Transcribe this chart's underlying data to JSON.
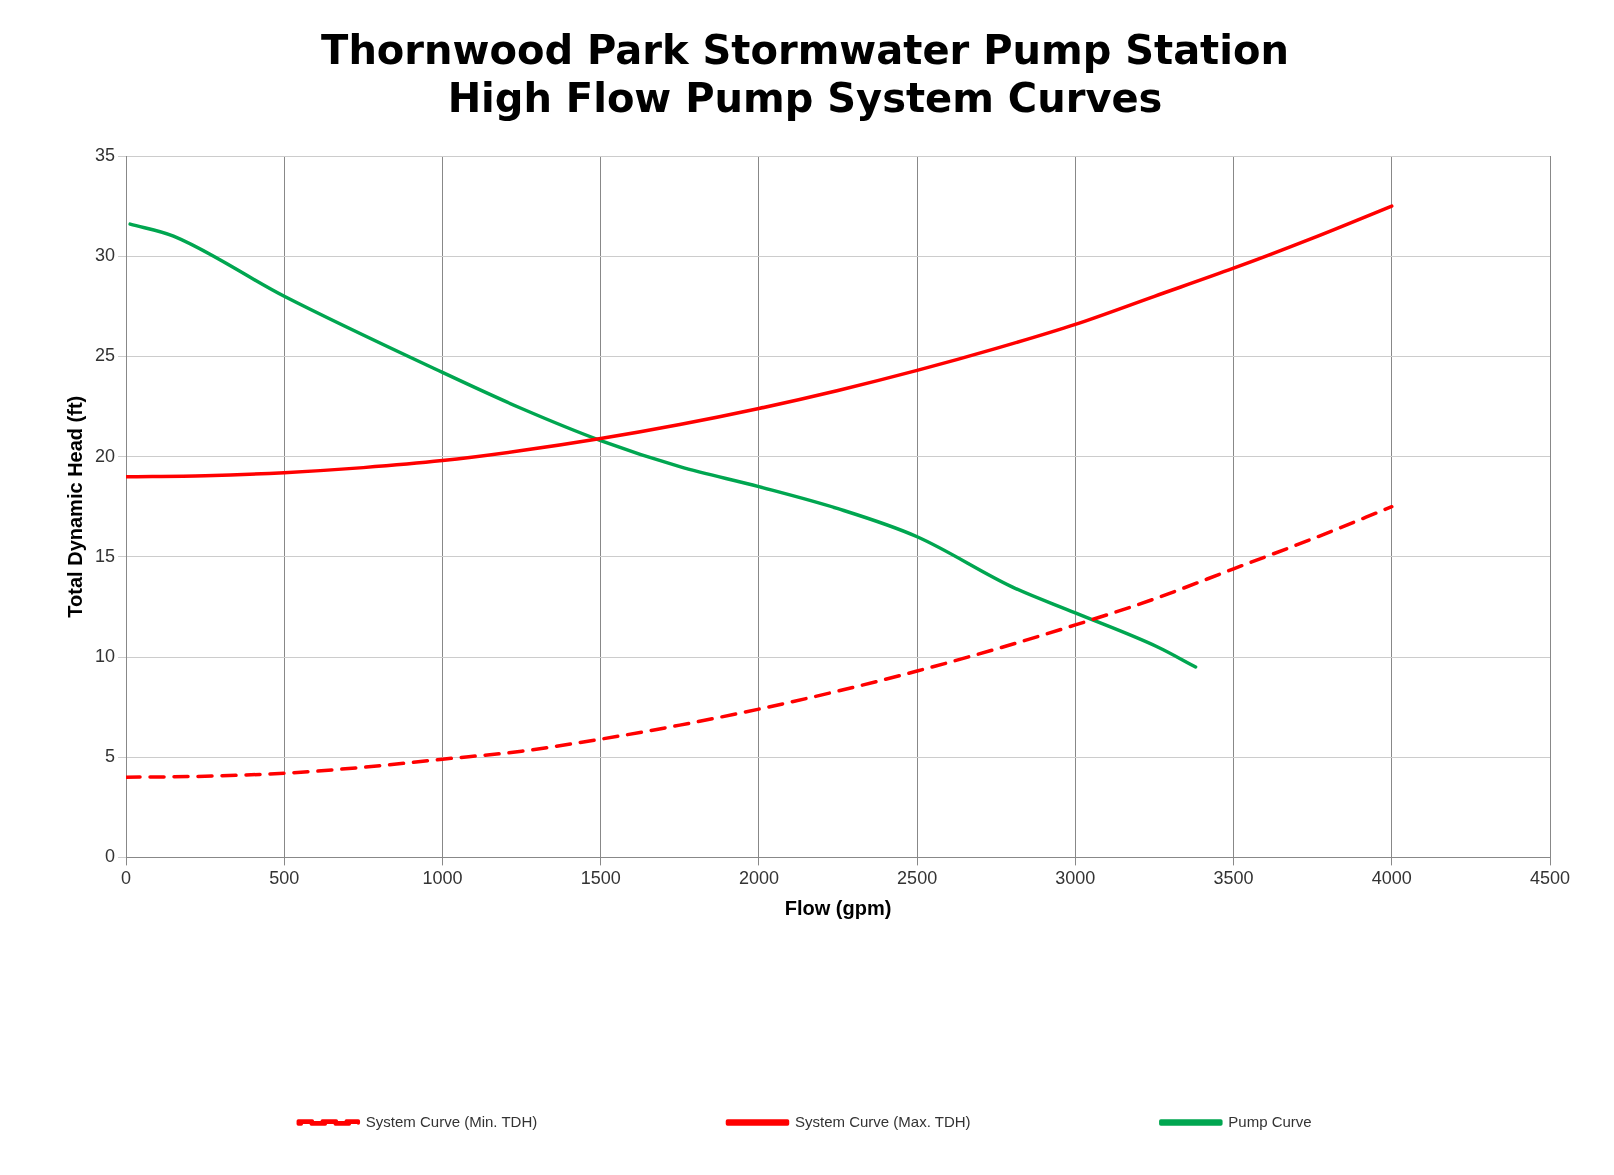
{
  "chart_data": {
    "type": "line",
    "title": [
      "Thornwood Park Stormwater Pump Station",
      "High Flow Pump System Curves"
    ],
    "xlabel": "Flow (gpm)",
    "ylabel": "Total Dynamic Head (ft)",
    "xlim": [
      0,
      4500
    ],
    "xticks": [
      0,
      500,
      1000,
      1500,
      2000,
      2500,
      3000,
      3500,
      4000,
      4500
    ],
    "ylim": [
      0,
      35
    ],
    "yticks": [
      0,
      5,
      10,
      15,
      20,
      25,
      30,
      35
    ],
    "grid": true,
    "legend": "bottom",
    "marker": "none",
    "series": [
      {
        "name": "System Curve (Min. TDH)",
        "color": "#ff0000",
        "line_style": "dashed",
        "x": [
          0,
          250,
          500,
          750,
          1000,
          1250,
          1500,
          1750,
          2000,
          2250,
          2500,
          2750,
          3000,
          3250,
          3500,
          3750,
          4000
        ],
        "values": [
          4.0,
          4.05,
          4.2,
          4.5,
          4.9,
          5.3,
          5.9,
          6.6,
          7.4,
          8.3,
          9.3,
          10.4,
          11.6,
          12.9,
          14.4,
          15.9,
          17.5
        ]
      },
      {
        "name": "System Curve (Max. TDH)",
        "color": "#ff0000",
        "line_style": "solid",
        "x": [
          0,
          250,
          500,
          750,
          1000,
          1250,
          1500,
          1750,
          2000,
          2250,
          2500,
          2750,
          3000,
          3250,
          3500,
          3750,
          4000
        ],
        "values": [
          19.0,
          19.05,
          19.2,
          19.45,
          19.8,
          20.3,
          20.9,
          21.6,
          22.4,
          23.3,
          24.3,
          25.4,
          26.6,
          28.0,
          29.4,
          30.9,
          32.5
        ]
      },
      {
        "name": "Pump Curve",
        "color": "#00a650",
        "line_style": "solid",
        "x": [
          13,
          150,
          500,
          1000,
          1250,
          1500,
          1750,
          2000,
          2250,
          2500,
          2800,
          3000,
          3260,
          3380
        ],
        "values": [
          31.6,
          31.0,
          28.0,
          24.2,
          22.4,
          20.8,
          19.5,
          18.5,
          17.4,
          16.0,
          13.5,
          12.2,
          10.5,
          9.5
        ]
      }
    ]
  }
}
